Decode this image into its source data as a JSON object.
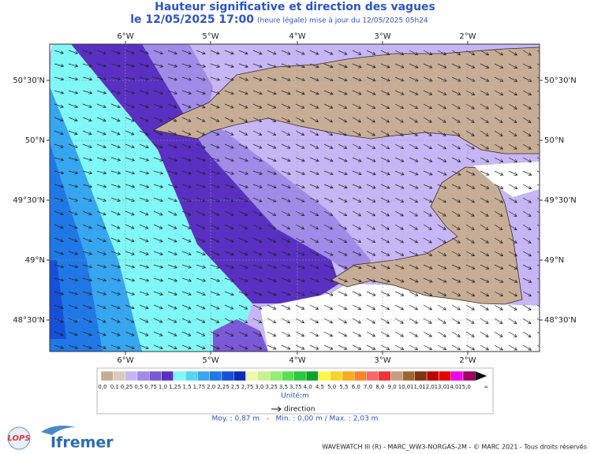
{
  "header": {
    "title": "Hauteur significative et direction des vagues",
    "datetime": "le 12/05/2025 17:00",
    "update_note": "(heure légale) mise à jour du 12/05/2025 05h24"
  },
  "map": {
    "longitude_labels": [
      "6°W",
      "5°W",
      "4°W",
      "3°W",
      "2°W"
    ],
    "latitude_labels": [
      "50°30'N",
      "50°N",
      "49°30'N",
      "49°N",
      "48°30'N"
    ]
  },
  "legend": {
    "items": [
      {
        "label": "0,0",
        "color": "#c8ad96"
      },
      {
        "label": "0,1",
        "color": "#dcc8bc"
      },
      {
        "label": "0,25",
        "color": "#c6b6f6"
      },
      {
        "label": "0,5",
        "color": "#a08be8"
      },
      {
        "label": "0,75",
        "color": "#7a58d8"
      },
      {
        "label": "1,0",
        "color": "#5a30c2"
      },
      {
        "label": "1,25",
        "color": "#80f8f8"
      },
      {
        "label": "1,5",
        "color": "#52d6f4"
      },
      {
        "label": "1,75",
        "color": "#36a6f0"
      },
      {
        "label": "2,0",
        "color": "#1f78e6"
      },
      {
        "label": "2,25",
        "color": "#1650d8"
      },
      {
        "label": "2,5",
        "color": "#0c2cb8"
      },
      {
        "label": "2,75",
        "color": "#eef8a8"
      },
      {
        "label": "3,0",
        "color": "#c8f090"
      },
      {
        "label": "3,25",
        "color": "#94ee70"
      },
      {
        "label": "3,5",
        "color": "#58e050"
      },
      {
        "label": "3,75",
        "color": "#28c840"
      },
      {
        "label": "4,0",
        "color": "#10a030"
      },
      {
        "label": "4,5",
        "color": "#fff848"
      },
      {
        "label": "5,0",
        "color": "#f8d428"
      },
      {
        "label": "5,5",
        "color": "#f8ac20"
      },
      {
        "label": "6,0",
        "color": "#f88428"
      },
      {
        "label": "7,0",
        "color": "#f86868"
      },
      {
        "label": "8,0",
        "color": "#f03434"
      },
      {
        "label": "9,0",
        "color": "#c89c80"
      },
      {
        "label": "10,0",
        "color": "#a06434"
      },
      {
        "label": "11,0",
        "color": "#803414"
      },
      {
        "label": "12,0",
        "color": "#c00000"
      },
      {
        "label": "13,0",
        "color": "#e80000"
      },
      {
        "label": "14,0",
        "color": "#f000f0"
      },
      {
        "label": "15,0",
        "color": "#a00060"
      }
    ],
    "overflow": {
      "label": "∞",
      "color": "#111111"
    },
    "unit": "Unité:m",
    "direction": "direction"
  },
  "stats": "Moy. : 0,87 m   -   Min. : 0,00 m / Max. : 2,03 m",
  "logos": {
    "lops": "LOPS",
    "ifremer": "Ifremer"
  },
  "footer": "WAVEWATCH III (R) - MARC_WW3-NORGAS-2M - © MARC 2021 - Tous droits réservés"
}
